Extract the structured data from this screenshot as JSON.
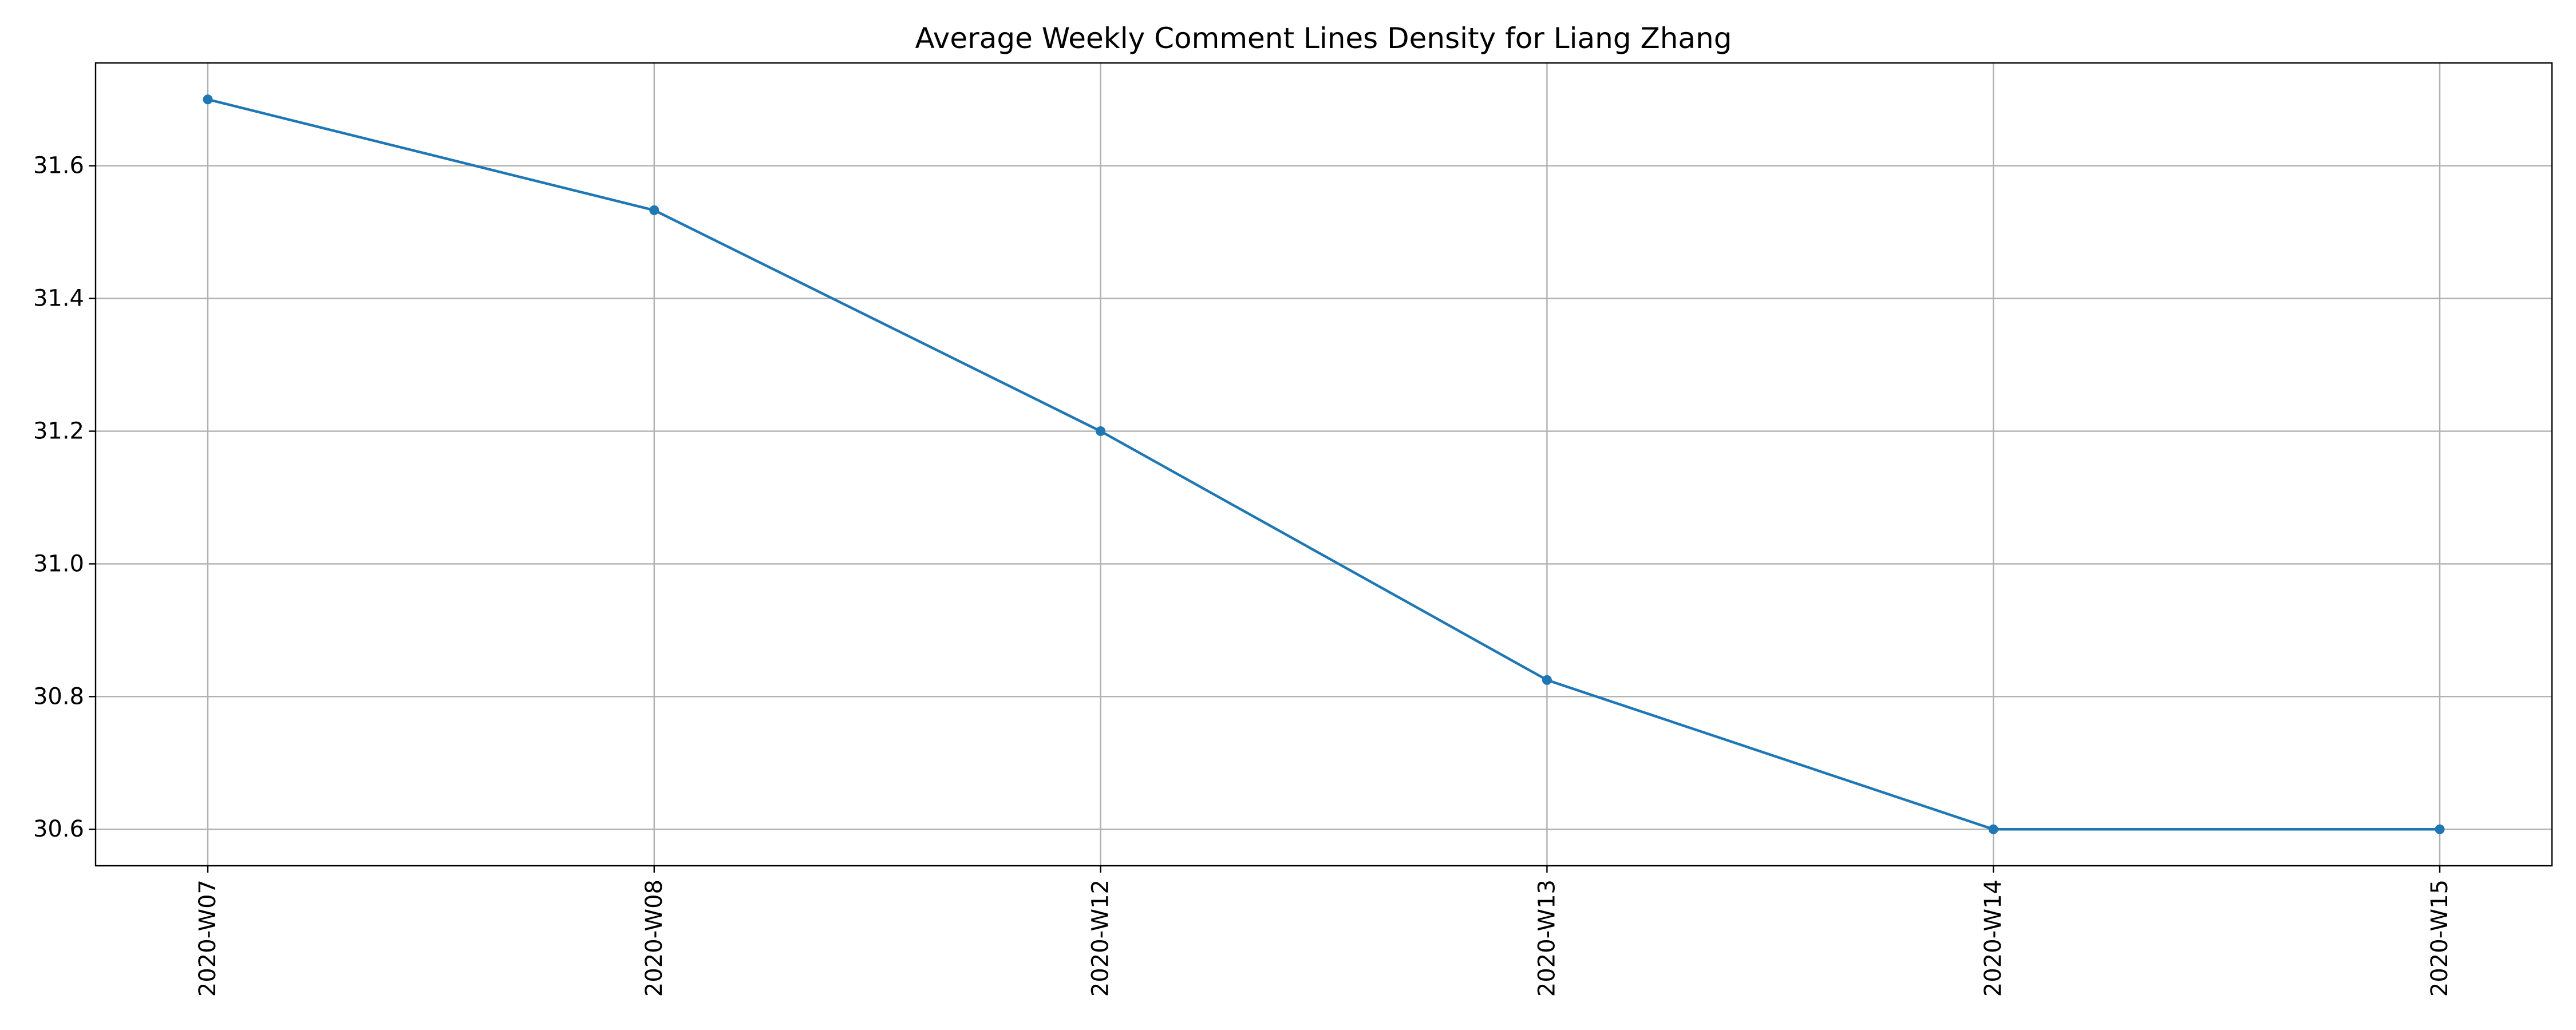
{
  "chart_data": {
    "type": "line",
    "title": "Average Weekly Comment Lines Density for Liang Zhang",
    "xlabel": "",
    "ylabel": "",
    "categories": [
      "2020-W07",
      "2020-W08",
      "2020-W12",
      "2020-W13",
      "2020-W14",
      "2020-W15"
    ],
    "series": [
      {
        "values": [
          31.7,
          31.533,
          31.2,
          30.825,
          30.6,
          30.6
        ],
        "color": "#1f77b4",
        "marker": "circle"
      }
    ],
    "y_ticks": [
      "30.6",
      "30.8",
      "31.0",
      "31.2",
      "31.4",
      "31.6"
    ],
    "ylim": [
      30.545,
      31.755
    ],
    "grid": true,
    "legend": "none",
    "x_tick_rotation": "vertical"
  }
}
